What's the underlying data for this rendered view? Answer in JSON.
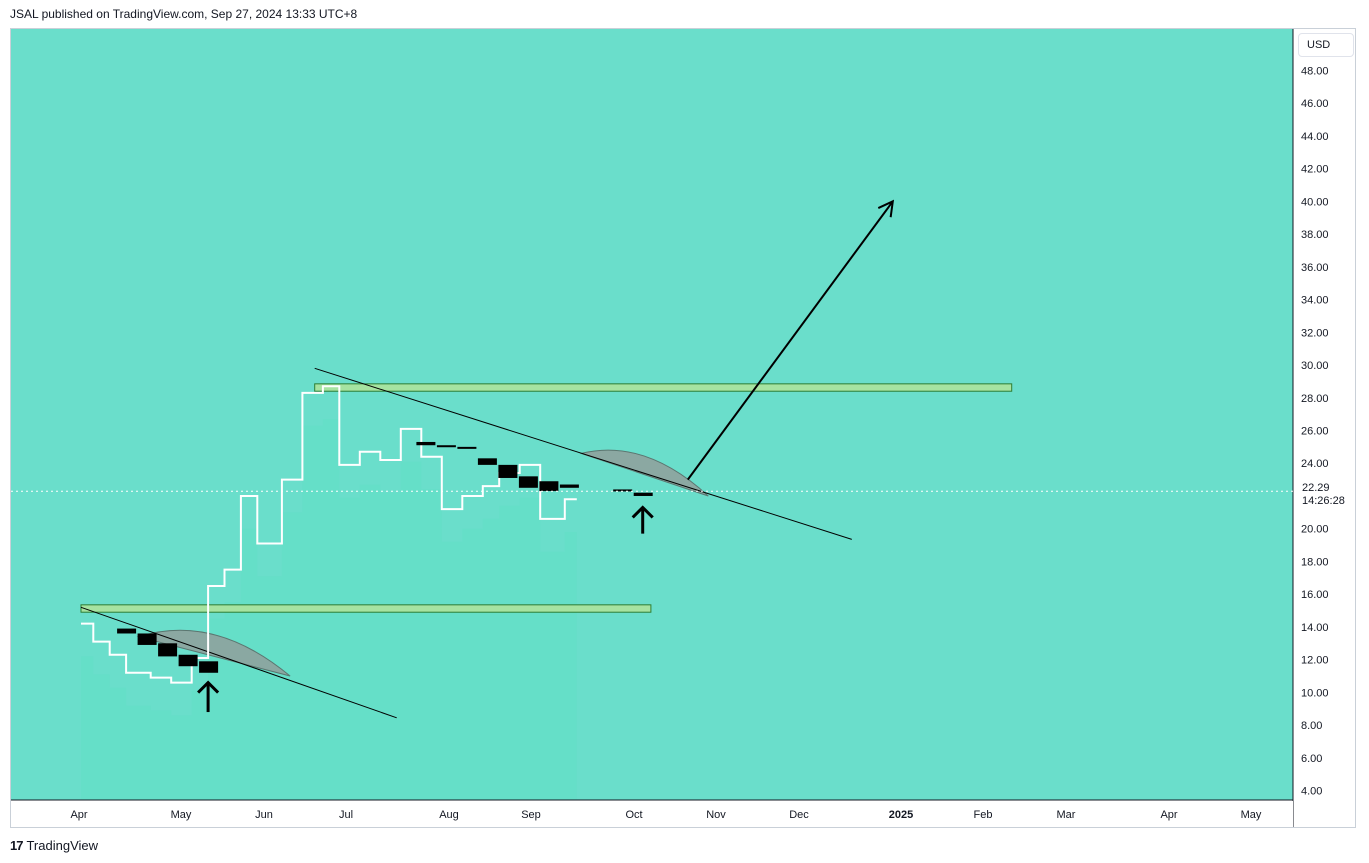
{
  "header": {
    "publisher_line": "JSAL published on TradingView.com, Sep 27, 2024 13:33 UTC+8"
  },
  "brand": {
    "logo": "17",
    "name": "TradingView"
  },
  "currency": "USD",
  "last_price": {
    "value": "22.29",
    "countdown": "14:26:28"
  },
  "colors": {
    "background": "#6adecb",
    "zone_fill": "#a6e3a1",
    "zone_stroke": "#2e7d32",
    "candle": "#000000",
    "line": "#ffffff",
    "arc": "#8fa39e"
  },
  "chart_data": {
    "type": "line",
    "x_axis": {
      "ticks": [
        "Apr",
        "May",
        "Jun",
        "Jul",
        "Aug",
        "Sep",
        "Oct",
        "Nov",
        "Dec",
        "2025",
        "Feb",
        "Mar",
        "Apr",
        "May"
      ],
      "bold": [
        "2025"
      ]
    },
    "y_axis": {
      "ticks": [
        "48.00",
        "46.00",
        "44.00",
        "42.00",
        "40.00",
        "38.00",
        "36.00",
        "34.00",
        "32.00",
        "30.00",
        "28.00",
        "26.00",
        "24.00",
        "22.00",
        "20.00",
        "18.00",
        "16.00",
        "14.00",
        "12.00",
        "10.00",
        "8.00",
        "6.00",
        "4.00"
      ],
      "range": [
        3.0,
        49.0
      ]
    },
    "line_series": {
      "x": [
        0.0,
        0.15,
        0.35,
        0.55,
        0.85,
        1.1,
        1.35,
        1.55,
        1.75,
        1.95,
        2.15,
        2.45,
        2.7,
        2.95,
        3.15,
        3.4,
        3.65,
        3.9,
        4.15,
        4.4,
        4.65,
        4.9,
        5.1,
        5.35,
        5.6,
        5.9
      ],
      "y": [
        14.2,
        13.1,
        12.3,
        11.2,
        10.9,
        10.6,
        12.1,
        16.5,
        17.5,
        22.0,
        19.1,
        23.0,
        28.3,
        28.7,
        23.9,
        24.7,
        24.2,
        26.1,
        24.4,
        21.2,
        22.0,
        22.6,
        23.4,
        23.9,
        20.6,
        21.8
      ]
    },
    "candles": [
      {
        "x": 0.55,
        "open": 13.9,
        "close": 13.6
      },
      {
        "x": 0.8,
        "open": 13.6,
        "close": 12.9
      },
      {
        "x": 1.05,
        "open": 13.0,
        "close": 12.2
      },
      {
        "x": 1.3,
        "open": 12.3,
        "close": 11.6
      },
      {
        "x": 1.55,
        "open": 11.9,
        "close": 11.2
      },
      {
        "x": 4.2,
        "open": 25.3,
        "close": 25.1
      },
      {
        "x": 4.45,
        "open": 25.1,
        "close": 25.0
      },
      {
        "x": 4.7,
        "open": 25.0,
        "close": 24.9
      },
      {
        "x": 4.95,
        "open": 24.3,
        "close": 23.9
      },
      {
        "x": 5.2,
        "open": 23.9,
        "close": 23.1
      },
      {
        "x": 5.45,
        "open": 23.2,
        "close": 22.5
      },
      {
        "x": 5.7,
        "open": 22.9,
        "close": 22.3
      },
      {
        "x": 5.95,
        "open": 22.7,
        "close": 22.5
      },
      {
        "x": 6.6,
        "open": 22.4,
        "close": 22.3
      },
      {
        "x": 6.85,
        "open": 22.2,
        "close": 22.0
      }
    ],
    "annotations": {
      "zones": [
        {
          "x1": 0.0,
          "x2": 6.95,
          "y_top": 15.35,
          "y_bottom": 14.9
        },
        {
          "x1": 2.85,
          "x2": 11.35,
          "y_top": 28.85,
          "y_bottom": 28.4
        }
      ],
      "trendlines": [
        {
          "x1": 0.0,
          "y1": 15.2,
          "x2": 3.85,
          "y2": 8.45
        },
        {
          "x1": 2.85,
          "y1": 29.8,
          "x2": 9.4,
          "y2": 19.35
        }
      ],
      "arcs": [
        {
          "x1": 0.7,
          "y1": 13.4,
          "x2": 2.55,
          "y2": 11.0,
          "peak_y": 14.0
        },
        {
          "x1": 6.1,
          "y1": 24.6,
          "x2": 7.65,
          "y2": 22.0,
          "peak_y": 24.7
        }
      ],
      "arrows": [
        {
          "kind": "up",
          "x": 1.55,
          "y_tail": 8.8,
          "y_head": 10.6
        },
        {
          "kind": "up",
          "x": 6.85,
          "y_tail": 19.7,
          "y_head": 21.3
        },
        {
          "kind": "diagonal",
          "x1": 7.4,
          "y1": 23.0,
          "x2": 9.9,
          "y2": 40.0
        }
      ]
    }
  }
}
